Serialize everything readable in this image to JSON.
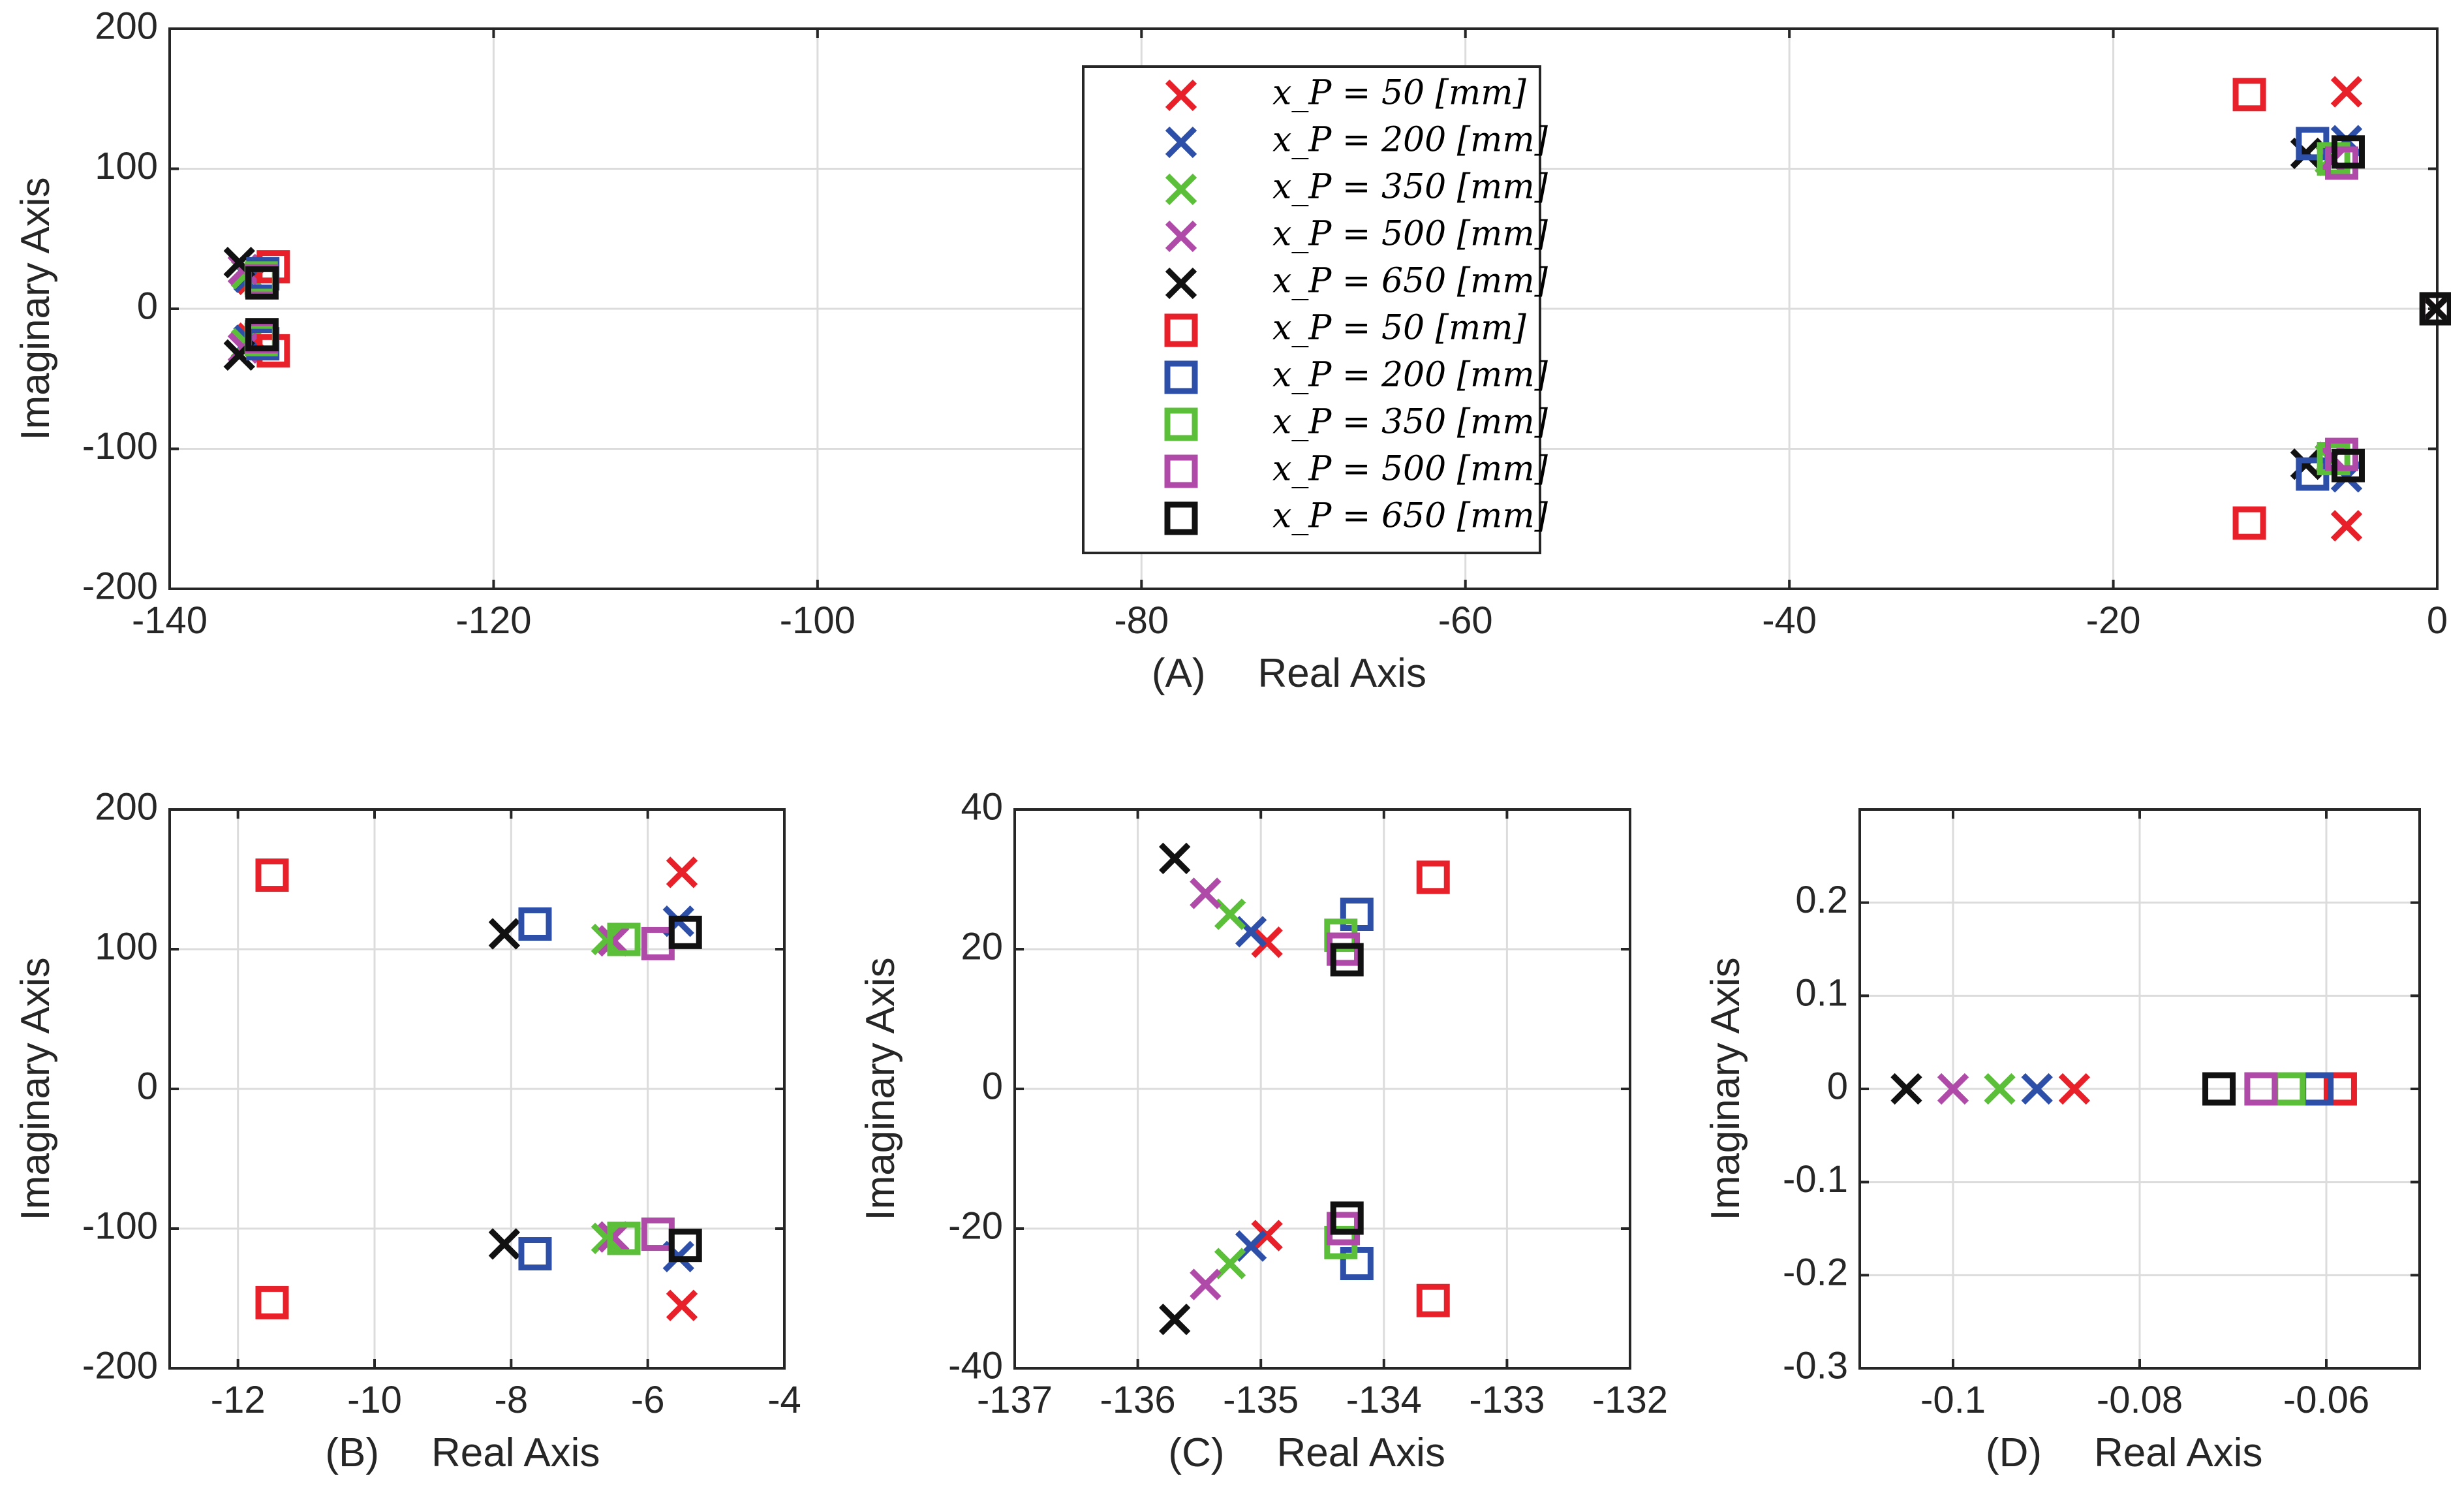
{
  "chart_data": [
    {
      "id": "A",
      "type": "scatter",
      "panel_label": "(A)",
      "xlabel": "Real Axis",
      "ylabel": "Imaginary Axis",
      "xlim": [
        -140,
        0
      ],
      "ylim": [
        -200,
        200
      ],
      "xticks": [
        -140,
        -120,
        -100,
        -80,
        -60,
        -40,
        -20,
        0
      ],
      "yticks": [
        -200,
        -100,
        0,
        100,
        200
      ],
      "xtick_labels": [
        "-140",
        "-120",
        "-100",
        "-80",
        "-60",
        "-40",
        "-20",
        "0"
      ],
      "ytick_labels": [
        "-200",
        "-100",
        "0",
        "100",
        "200"
      ],
      "grid": true,
      "legend": {
        "placement": "top-center",
        "entries": [
          {
            "label": "x_P = 50 [mm]",
            "marker": "x",
            "color": "#e8202a"
          },
          {
            "label": "x_P = 200 [mm]",
            "marker": "x",
            "color": "#2e4fa8"
          },
          {
            "label": "x_P = 350 [mm]",
            "marker": "x",
            "color": "#5cbf3a"
          },
          {
            "label": "x_P = 500 [mm]",
            "marker": "x",
            "color": "#b04aa8"
          },
          {
            "label": "x_P = 650 [mm]",
            "marker": "x",
            "color": "#111111"
          },
          {
            "label": "x_P = 50 [mm]",
            "marker": "square",
            "color": "#e8202a"
          },
          {
            "label": "x_P = 200 [mm]",
            "marker": "square",
            "color": "#2e4fa8"
          },
          {
            "label": "x_P = 350 [mm]",
            "marker": "square",
            "color": "#5cbf3a"
          },
          {
            "label": "x_P = 500 [mm]",
            "marker": "square",
            "color": "#b04aa8"
          },
          {
            "label": "x_P = 650 [mm]",
            "marker": "square",
            "color": "#111111"
          }
        ]
      },
      "series": [
        {
          "marker": "x",
          "color": "#e8202a",
          "points": [
            [
              -134.9,
              21
            ],
            [
              -134.9,
              -21
            ],
            [
              -5.6,
              155
            ],
            [
              -5.6,
              -155
            ],
            [
              -0.087,
              0
            ]
          ]
        },
        {
          "marker": "x",
          "color": "#2e4fa8",
          "points": [
            [
              -135.1,
              22.5
            ],
            [
              -135.1,
              -22.5
            ],
            [
              -5.6,
              120
            ],
            [
              -5.6,
              -120
            ],
            [
              -0.091,
              0
            ]
          ]
        },
        {
          "marker": "x",
          "color": "#5cbf3a",
          "points": [
            [
              -135.25,
              25
            ],
            [
              -135.25,
              -25
            ],
            [
              -6.6,
              107
            ],
            [
              -6.6,
              -107
            ],
            [
              -0.095,
              0
            ]
          ]
        },
        {
          "marker": "x",
          "color": "#b04aa8",
          "points": [
            [
              -135.45,
              28
            ],
            [
              -135.45,
              -28
            ],
            [
              -6.5,
              106
            ],
            [
              -6.5,
              -106
            ],
            [
              -0.1,
              0
            ]
          ]
        },
        {
          "marker": "x",
          "color": "#111111",
          "points": [
            [
              -135.7,
              33
            ],
            [
              -135.7,
              -33
            ],
            [
              -8.1,
              111
            ],
            [
              -8.1,
              -111
            ],
            [
              -0.105,
              0
            ]
          ]
        },
        {
          "marker": "square",
          "color": "#e8202a",
          "points": [
            [
              -133.6,
              30
            ],
            [
              -133.6,
              -30
            ],
            [
              -11.6,
              153
            ],
            [
              -11.6,
              -153
            ],
            [
              -0.0585,
              0
            ]
          ]
        },
        {
          "marker": "square",
          "color": "#2e4fa8",
          "points": [
            [
              -134.25,
              25
            ],
            [
              -134.25,
              -25
            ],
            [
              -7.7,
              118
            ],
            [
              -7.7,
              -118
            ],
            [
              -0.061,
              0
            ]
          ]
        },
        {
          "marker": "square",
          "color": "#5cbf3a",
          "points": [
            [
              -134.35,
              22
            ],
            [
              -134.35,
              -22
            ],
            [
              -6.4,
              107
            ],
            [
              -6.4,
              -107
            ],
            [
              -0.064,
              0
            ]
          ]
        },
        {
          "marker": "square",
          "color": "#b04aa8",
          "points": [
            [
              -134.33,
              20
            ],
            [
              -134.33,
              -20
            ],
            [
              -5.9,
              104
            ],
            [
              -5.9,
              -104
            ],
            [
              -0.067,
              0
            ]
          ]
        },
        {
          "marker": "square",
          "color": "#111111",
          "points": [
            [
              -134.3,
              18.5
            ],
            [
              -134.3,
              -18.5
            ],
            [
              -5.5,
              112
            ],
            [
              -5.5,
              -112
            ],
            [
              -0.071,
              0
            ]
          ]
        }
      ]
    },
    {
      "id": "B",
      "type": "scatter",
      "panel_label": "(B)",
      "xlabel": "Real Axis",
      "ylabel": "Imaginary Axis",
      "xlim": [
        -13,
        -4
      ],
      "ylim": [
        -200,
        200
      ],
      "xticks": [
        -12,
        -10,
        -8,
        -6,
        -4
      ],
      "yticks": [
        -200,
        -100,
        0,
        100,
        200
      ],
      "xtick_labels": [
        "-12",
        "-10",
        "-8",
        "-6",
        "-4"
      ],
      "ytick_labels": [
        "-200",
        "-100",
        "0",
        "100",
        "200"
      ],
      "grid": true,
      "series": [
        {
          "marker": "x",
          "color": "#e8202a",
          "points": [
            [
              -5.5,
              155
            ],
            [
              -5.5,
              -155
            ]
          ]
        },
        {
          "marker": "x",
          "color": "#2e4fa8",
          "points": [
            [
              -5.55,
              120
            ],
            [
              -5.55,
              -120
            ]
          ]
        },
        {
          "marker": "x",
          "color": "#5cbf3a",
          "points": [
            [
              -6.6,
              107
            ],
            [
              -6.6,
              -107
            ]
          ]
        },
        {
          "marker": "x",
          "color": "#b04aa8",
          "points": [
            [
              -6.5,
              106
            ],
            [
              -6.5,
              -106
            ]
          ]
        },
        {
          "marker": "x",
          "color": "#111111",
          "points": [
            [
              -8.1,
              111
            ],
            [
              -8.1,
              -111
            ]
          ]
        },
        {
          "marker": "square",
          "color": "#e8202a",
          "points": [
            [
              -11.5,
              153
            ],
            [
              -11.5,
              -153
            ]
          ]
        },
        {
          "marker": "square",
          "color": "#2e4fa8",
          "points": [
            [
              -7.65,
              118
            ],
            [
              -7.65,
              -118
            ]
          ]
        },
        {
          "marker": "square",
          "color": "#5cbf3a",
          "points": [
            [
              -6.35,
              107
            ],
            [
              -6.35,
              -107
            ]
          ]
        },
        {
          "marker": "square",
          "color": "#b04aa8",
          "points": [
            [
              -5.85,
              104
            ],
            [
              -5.85,
              -104
            ]
          ]
        },
        {
          "marker": "square",
          "color": "#111111",
          "points": [
            [
              -5.45,
              112
            ],
            [
              -5.45,
              -112
            ]
          ]
        }
      ]
    },
    {
      "id": "C",
      "type": "scatter",
      "panel_label": "(C)",
      "xlabel": "Real Axis",
      "ylabel": "Imaginary Axis",
      "xlim": [
        -137,
        -132
      ],
      "ylim": [
        -40,
        40
      ],
      "xticks": [
        -137,
        -136,
        -135,
        -134,
        -133,
        -132
      ],
      "yticks": [
        -40,
        -20,
        0,
        20,
        40
      ],
      "xtick_labels": [
        "-137",
        "-136",
        "-135",
        "-134",
        "-133",
        "-132"
      ],
      "ytick_labels": [
        "-40",
        "-20",
        "0",
        "20",
        "40"
      ],
      "grid": true,
      "series": [
        {
          "marker": "x",
          "color": "#e8202a",
          "points": [
            [
              -134.95,
              21
            ],
            [
              -134.95,
              -21
            ]
          ]
        },
        {
          "marker": "x",
          "color": "#2e4fa8",
          "points": [
            [
              -135.08,
              22.5
            ],
            [
              -135.08,
              -22.5
            ]
          ]
        },
        {
          "marker": "x",
          "color": "#5cbf3a",
          "points": [
            [
              -135.25,
              25
            ],
            [
              -135.25,
              -25
            ]
          ]
        },
        {
          "marker": "x",
          "color": "#b04aa8",
          "points": [
            [
              -135.45,
              28
            ],
            [
              -135.45,
              -28
            ]
          ]
        },
        {
          "marker": "x",
          "color": "#111111",
          "points": [
            [
              -135.7,
              33
            ],
            [
              -135.7,
              -33
            ]
          ]
        },
        {
          "marker": "square",
          "color": "#e8202a",
          "points": [
            [
              -133.6,
              30.3
            ],
            [
              -133.6,
              -30.3
            ]
          ]
        },
        {
          "marker": "square",
          "color": "#2e4fa8",
          "points": [
            [
              -134.22,
              25
            ],
            [
              -134.22,
              -25
            ]
          ]
        },
        {
          "marker": "square",
          "color": "#5cbf3a",
          "points": [
            [
              -134.35,
              22
            ],
            [
              -134.35,
              -22
            ]
          ]
        },
        {
          "marker": "square",
          "color": "#b04aa8",
          "points": [
            [
              -134.33,
              20
            ],
            [
              -134.33,
              -20
            ]
          ]
        },
        {
          "marker": "square",
          "color": "#111111",
          "points": [
            [
              -134.3,
              18.5
            ],
            [
              -134.3,
              -18.5
            ]
          ]
        }
      ]
    },
    {
      "id": "D",
      "type": "scatter",
      "panel_label": "(D)",
      "xlabel": "Real Axis",
      "ylabel": "Imaginary Axis",
      "xlim": [
        -0.11,
        -0.05
      ],
      "ylim": [
        -0.3,
        0.3
      ],
      "xticks": [
        -0.1,
        -0.08,
        -0.06
      ],
      "yticks": [
        -0.3,
        -0.2,
        -0.1,
        0,
        0.1,
        0.2
      ],
      "xtick_labels": [
        "-0.1",
        "-0.08",
        "-0.06"
      ],
      "ytick_labels": [
        "-0.3",
        "-0.2",
        "-0.1",
        "0",
        "0.1",
        "0.2"
      ],
      "grid": true,
      "series": [
        {
          "marker": "x",
          "color": "#e8202a",
          "points": [
            [
              -0.087,
              0
            ]
          ]
        },
        {
          "marker": "x",
          "color": "#2e4fa8",
          "points": [
            [
              -0.091,
              0
            ]
          ]
        },
        {
          "marker": "x",
          "color": "#5cbf3a",
          "points": [
            [
              -0.095,
              0
            ]
          ]
        },
        {
          "marker": "x",
          "color": "#b04aa8",
          "points": [
            [
              -0.1,
              0
            ]
          ]
        },
        {
          "marker": "x",
          "color": "#111111",
          "points": [
            [
              -0.105,
              0
            ]
          ]
        },
        {
          "marker": "square",
          "color": "#e8202a",
          "points": [
            [
              -0.0585,
              0
            ]
          ]
        },
        {
          "marker": "square",
          "color": "#2e4fa8",
          "points": [
            [
              -0.061,
              0
            ]
          ]
        },
        {
          "marker": "square",
          "color": "#5cbf3a",
          "points": [
            [
              -0.064,
              0
            ]
          ]
        },
        {
          "marker": "square",
          "color": "#b04aa8",
          "points": [
            [
              -0.067,
              0
            ]
          ]
        },
        {
          "marker": "square",
          "color": "#111111",
          "points": [
            [
              -0.0715,
              0
            ]
          ]
        }
      ]
    }
  ]
}
